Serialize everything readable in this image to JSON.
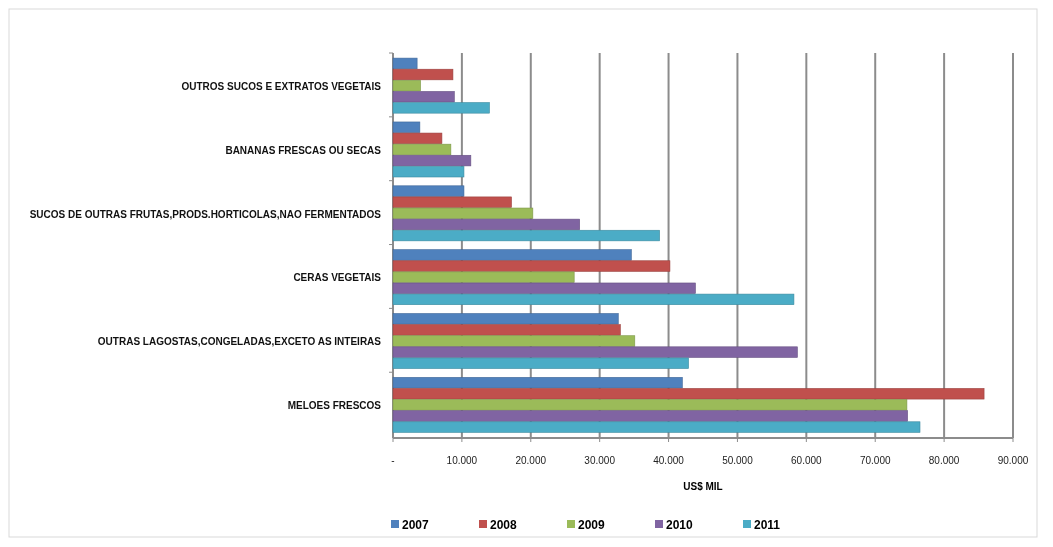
{
  "chart_data": {
    "type": "bar",
    "orientation": "horizontal",
    "xlabel": "US$ MIL",
    "categories": [
      "OUTROS SUCOS E EXTRATOS VEGETAIS",
      "BANANAS FRESCAS OU SECAS",
      "SUCOS DE OUTRAS FRUTAS,PRODS.HORTICOLAS,NAO FERMENTADOS",
      "CERAS VEGETAIS",
      "OUTRAS LAGOSTAS,CONGELADAS,EXCETO AS INTEIRAS",
      "MELOES FRESCOS"
    ],
    "series": [
      {
        "name": "2007",
        "color": "#4f81bd",
        "values": [
          3500,
          3900,
          10300,
          34600,
          32700,
          42000
        ]
      },
      {
        "name": "2008",
        "color": "#c0504d",
        "values": [
          8700,
          7100,
          17200,
          40200,
          33000,
          85800
        ]
      },
      {
        "name": "2009",
        "color": "#9bbb59",
        "values": [
          4000,
          8400,
          20300,
          26300,
          35100,
          74600
        ]
      },
      {
        "name": "2010",
        "color": "#8064a2",
        "values": [
          8900,
          11300,
          27100,
          43900,
          58700,
          74700
        ]
      },
      {
        "name": "2011",
        "color": "#4bacc6",
        "values": [
          14000,
          10300,
          38700,
          58200,
          42900,
          76500
        ]
      }
    ],
    "xlim": [
      0,
      90000
    ],
    "xticks": [
      {
        "value": 0,
        "label": "-"
      },
      {
        "value": 10000,
        "label": "10.000"
      },
      {
        "value": 20000,
        "label": "20.000"
      },
      {
        "value": 30000,
        "label": "30.000"
      },
      {
        "value": 40000,
        "label": "40.000"
      },
      {
        "value": 50000,
        "label": "50.000"
      },
      {
        "value": 60000,
        "label": "60.000"
      },
      {
        "value": 70000,
        "label": "70.000"
      },
      {
        "value": 80000,
        "label": "80.000"
      },
      {
        "value": 90000,
        "label": "90.000"
      }
    ],
    "grid": "x",
    "legend": "bottom"
  }
}
